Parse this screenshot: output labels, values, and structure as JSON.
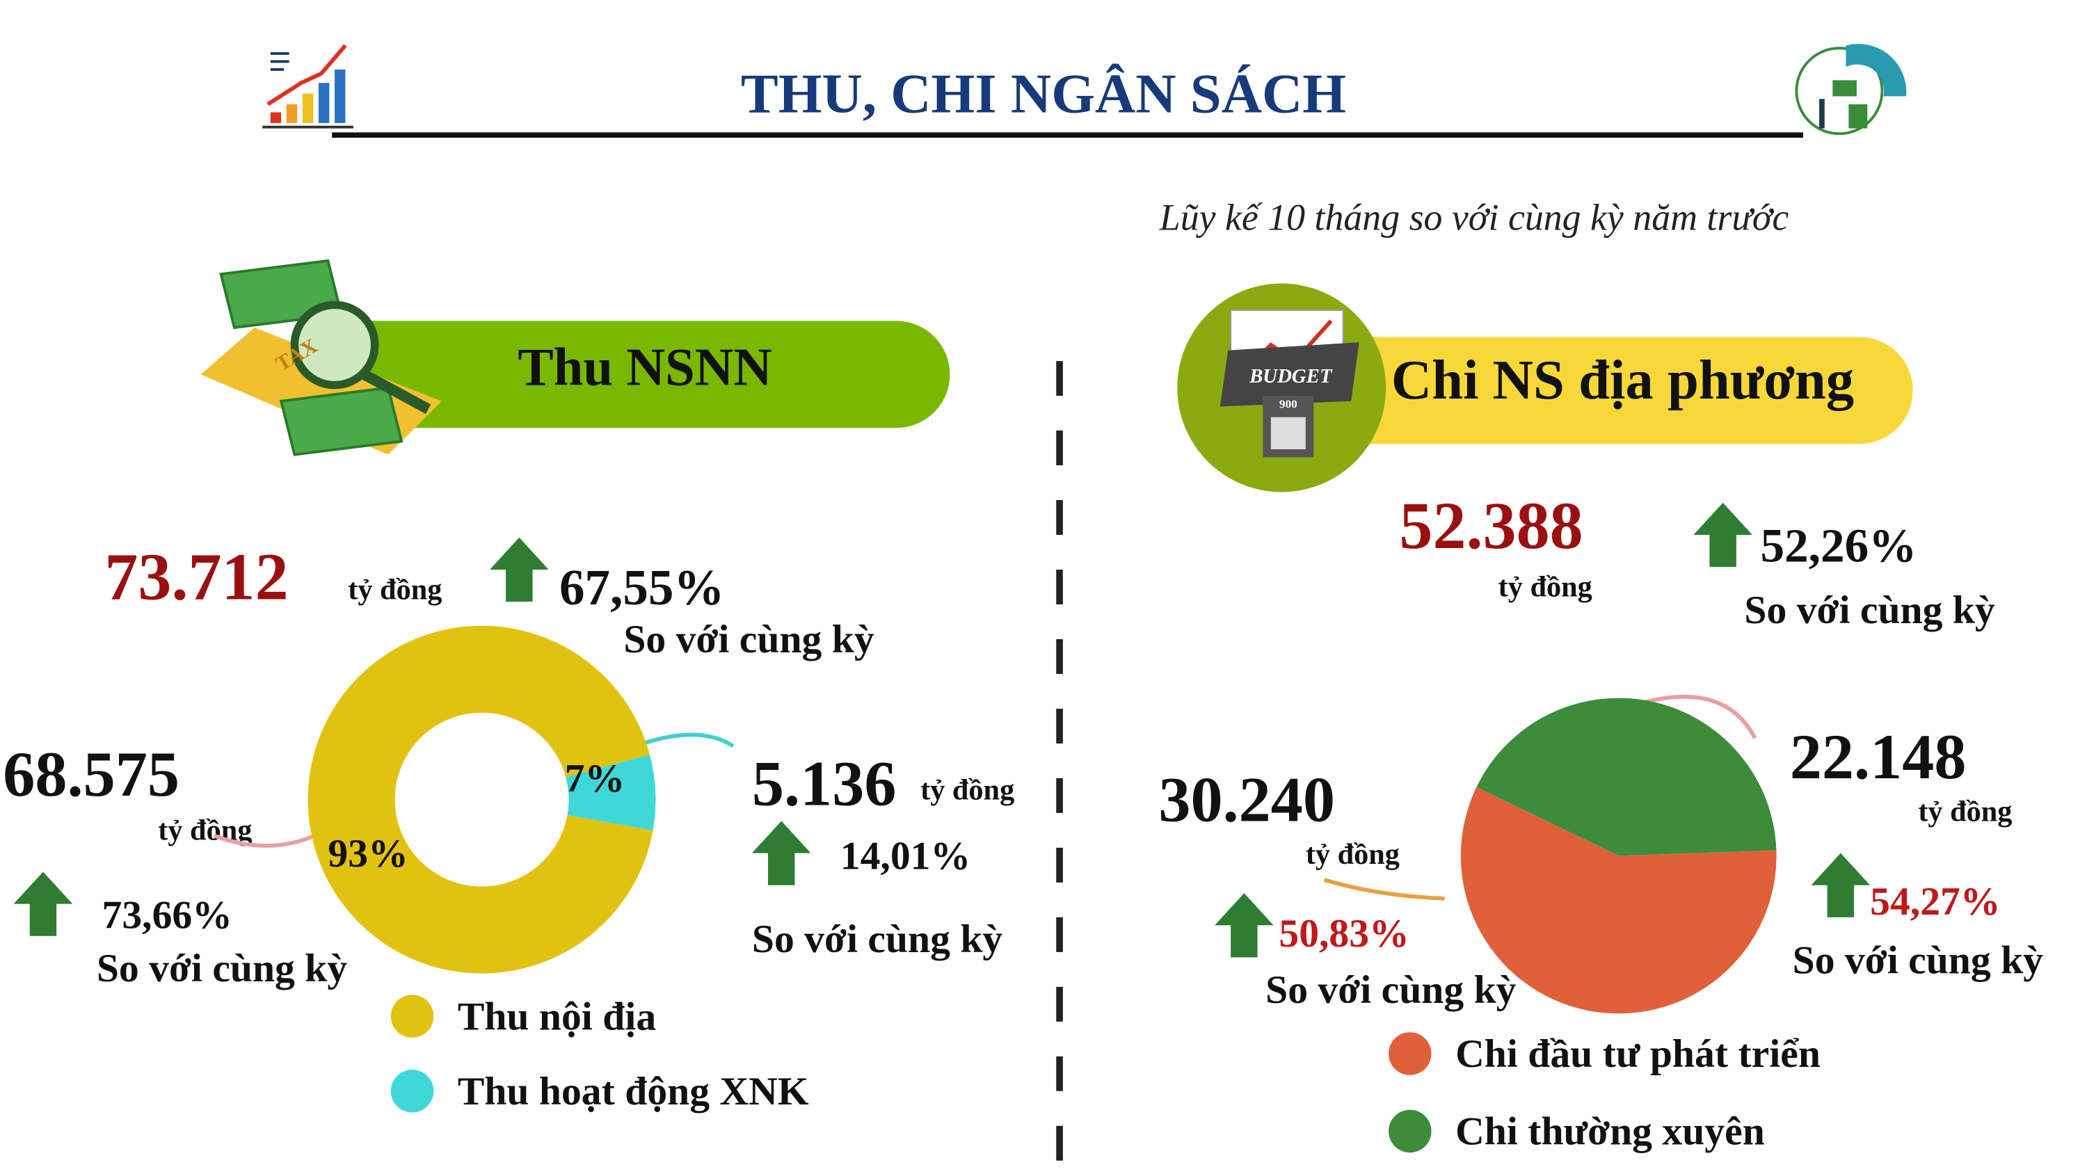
{
  "header": {
    "title": "THU, CHI NGÂN SÁCH",
    "subtitle": "Lũy kế 10 tháng so với cùng kỳ năm trước"
  },
  "icons": {
    "tax": "TAX",
    "budget": "BUDGET",
    "calc": "900"
  },
  "thu": {
    "label": "Thu NSNN",
    "total": "73.712",
    "unit": "tỷ đồng",
    "growth": "67,55%",
    "compare": "So với cùng kỳ",
    "domestic": {
      "amount": "68.575",
      "unit": "tỷ đồng",
      "growth": "73,66%",
      "compare": "So với cùng kỳ"
    },
    "xnk": {
      "amount": "5.136",
      "unit": "tỷ đồng",
      "growth": "14,01%",
      "compare": "So với cùng kỳ"
    }
  },
  "chi": {
    "label": "Chi NS địa phương",
    "total": "52.388",
    "unit": "tỷ đồng",
    "growth": "52,26%",
    "compare": "So với cùng kỳ",
    "invest": {
      "unit": "tỷ đồng",
      "growth": "50,83%",
      "compare": "So với cùng kỳ"
    },
    "regular": {
      "unit": "tỷ đồng",
      "growth": "54,27%",
      "compare": "So với cùng kỳ"
    }
  },
  "chart_data": [
    {
      "type": "donut",
      "categories": [
        "Thu nội địa",
        "Thu hoạt động XNK"
      ],
      "values": [
        93,
        7
      ],
      "value_labels": [
        "93%",
        "7%"
      ],
      "colors": [
        "#e2c210",
        "#3fd8d8"
      ]
    },
    {
      "type": "pie",
      "categories": [
        "Chi đầu tư phát triển",
        "Chi thường xuyên"
      ],
      "values": [
        30240,
        22148
      ],
      "value_labels": [
        "30.240",
        "22.148"
      ],
      "colors": [
        "#e0603c",
        "#3c8c3c"
      ]
    }
  ]
}
